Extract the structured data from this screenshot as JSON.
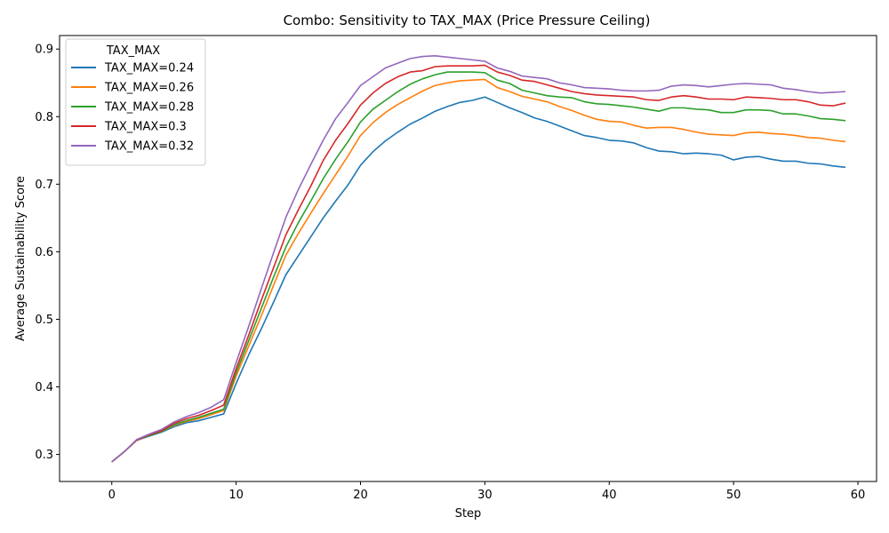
{
  "chart_data": {
    "type": "line",
    "title": "Combo: Sensitivity to TAX_MAX (Price Pressure Ceiling)",
    "xlabel": "Step",
    "ylabel": "Average Sustainability Score",
    "xlim": [
      -4.2,
      61.5
    ],
    "ylim": [
      0.26,
      0.92
    ],
    "xticks": [
      0,
      10,
      20,
      30,
      40,
      50,
      60
    ],
    "yticks": [
      0.3,
      0.4,
      0.5,
      0.6,
      0.7,
      0.8,
      0.9
    ],
    "grid": false,
    "legend": {
      "title": "TAX_MAX",
      "placement": "upper-left"
    },
    "x": [
      0,
      1,
      2,
      3,
      4,
      5,
      6,
      7,
      8,
      9,
      10,
      11,
      12,
      13,
      14,
      15,
      16,
      17,
      18,
      19,
      20,
      21,
      22,
      23,
      24,
      25,
      26,
      27,
      28,
      29,
      30,
      31,
      32,
      33,
      34,
      35,
      36,
      37,
      38,
      39,
      40,
      41,
      42,
      43,
      44,
      45,
      46,
      47,
      48,
      49,
      50,
      51,
      52,
      53,
      54,
      55,
      56,
      57,
      58,
      59
    ],
    "series": [
      {
        "name": "TAX_MAX=0.24",
        "color": "#1f77b4",
        "values": [
          0.289,
          0.304,
          0.321,
          0.327,
          0.333,
          0.341,
          0.347,
          0.35,
          0.355,
          0.36,
          0.405,
          0.447,
          0.485,
          0.525,
          0.566,
          0.594,
          0.622,
          0.65,
          0.675,
          0.699,
          0.728,
          0.748,
          0.764,
          0.777,
          0.789,
          0.798,
          0.808,
          0.815,
          0.821,
          0.824,
          0.829,
          0.821,
          0.813,
          0.806,
          0.798,
          0.793,
          0.786,
          0.779,
          0.772,
          0.769,
          0.765,
          0.764,
          0.761,
          0.754,
          0.749,
          0.748,
          0.745,
          0.746,
          0.745,
          0.743,
          0.736,
          0.74,
          0.741,
          0.737,
          0.734,
          0.734,
          0.731,
          0.73,
          0.727,
          0.725
        ]
      },
      {
        "name": "TAX_MAX=0.26",
        "color": "#ff7f0e",
        "values": [
          0.289,
          0.304,
          0.321,
          0.328,
          0.334,
          0.343,
          0.349,
          0.353,
          0.359,
          0.365,
          0.416,
          0.46,
          0.504,
          0.55,
          0.595,
          0.627,
          0.657,
          0.686,
          0.714,
          0.742,
          0.772,
          0.791,
          0.806,
          0.818,
          0.828,
          0.838,
          0.846,
          0.85,
          0.853,
          0.854,
          0.855,
          0.843,
          0.837,
          0.83,
          0.826,
          0.822,
          0.815,
          0.809,
          0.802,
          0.796,
          0.793,
          0.792,
          0.787,
          0.783,
          0.784,
          0.784,
          0.781,
          0.777,
          0.774,
          0.773,
          0.772,
          0.776,
          0.777,
          0.775,
          0.774,
          0.772,
          0.769,
          0.768,
          0.765,
          0.763
        ]
      },
      {
        "name": "TAX_MAX=0.28",
        "color": "#2ca02c",
        "values": [
          0.289,
          0.304,
          0.321,
          0.328,
          0.334,
          0.344,
          0.35,
          0.355,
          0.361,
          0.367,
          0.421,
          0.468,
          0.515,
          0.562,
          0.607,
          0.643,
          0.675,
          0.708,
          0.737,
          0.763,
          0.792,
          0.811,
          0.824,
          0.837,
          0.848,
          0.856,
          0.862,
          0.866,
          0.866,
          0.866,
          0.865,
          0.854,
          0.849,
          0.839,
          0.835,
          0.831,
          0.829,
          0.828,
          0.822,
          0.819,
          0.818,
          0.816,
          0.814,
          0.811,
          0.808,
          0.813,
          0.813,
          0.811,
          0.81,
          0.806,
          0.806,
          0.81,
          0.81,
          0.809,
          0.804,
          0.804,
          0.801,
          0.797,
          0.796,
          0.794
        ]
      },
      {
        "name": "TAX_MAX=0.3",
        "color": "#d62728",
        "values": [
          0.289,
          0.304,
          0.321,
          0.329,
          0.335,
          0.346,
          0.353,
          0.358,
          0.365,
          0.373,
          0.427,
          0.476,
          0.527,
          0.576,
          0.625,
          0.662,
          0.697,
          0.735,
          0.765,
          0.79,
          0.817,
          0.835,
          0.849,
          0.859,
          0.866,
          0.868,
          0.874,
          0.875,
          0.875,
          0.875,
          0.876,
          0.866,
          0.861,
          0.854,
          0.852,
          0.847,
          0.842,
          0.837,
          0.834,
          0.832,
          0.831,
          0.83,
          0.829,
          0.825,
          0.824,
          0.829,
          0.831,
          0.829,
          0.826,
          0.826,
          0.825,
          0.829,
          0.828,
          0.827,
          0.825,
          0.825,
          0.822,
          0.817,
          0.816,
          0.82
        ]
      },
      {
        "name": "TAX_MAX=0.32",
        "color": "#9467bd",
        "values": [
          0.289,
          0.304,
          0.322,
          0.33,
          0.337,
          0.348,
          0.356,
          0.362,
          0.37,
          0.381,
          0.436,
          0.489,
          0.544,
          0.598,
          0.651,
          0.692,
          0.729,
          0.765,
          0.797,
          0.821,
          0.846,
          0.859,
          0.872,
          0.879,
          0.886,
          0.889,
          0.89,
          0.888,
          0.886,
          0.884,
          0.882,
          0.872,
          0.867,
          0.86,
          0.858,
          0.856,
          0.85,
          0.847,
          0.843,
          0.842,
          0.841,
          0.839,
          0.838,
          0.838,
          0.839,
          0.845,
          0.847,
          0.846,
          0.844,
          0.846,
          0.848,
          0.849,
          0.848,
          0.847,
          0.842,
          0.84,
          0.837,
          0.835,
          0.836,
          0.837
        ]
      }
    ]
  }
}
